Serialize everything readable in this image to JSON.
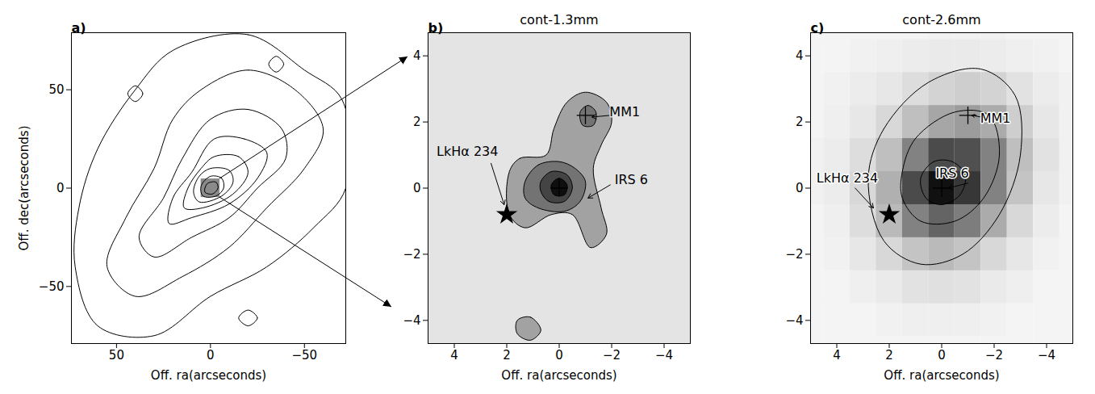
{
  "chart_data": [
    {
      "type": "contour",
      "panel_label": "a)",
      "x_label": "Off. ra(arcseconds)",
      "y_label": "Off. dec(arcseconds)",
      "xlim": [
        74,
        -72
      ],
      "ylim": [
        -79,
        79
      ],
      "xticks": [
        50,
        0,
        -50
      ],
      "yticks": [
        -50,
        0,
        50
      ],
      "contours": [
        {
          "points": [
            [
              20,
              70
            ],
            [
              -20,
              78
            ],
            [
              -50,
              60
            ],
            [
              -70,
              45
            ],
            [
              -72,
              0
            ],
            [
              -55,
              -20
            ],
            [
              -30,
              -40
            ],
            [
              0,
              -55
            ],
            [
              30,
              -75
            ],
            [
              60,
              -70
            ],
            [
              72,
              -40
            ],
            [
              70,
              -10
            ],
            [
              60,
              20
            ],
            [
              40,
              50
            ]
          ]
        },
        {
          "points": [
            [
              5,
              50
            ],
            [
              -20,
              60
            ],
            [
              -45,
              50
            ],
            [
              -60,
              30
            ],
            [
              -50,
              10
            ],
            [
              -30,
              -10
            ],
            [
              -10,
              -30
            ],
            [
              15,
              -45
            ],
            [
              40,
              -55
            ],
            [
              55,
              -40
            ],
            [
              45,
              -15
            ],
            [
              30,
              10
            ],
            [
              20,
              35
            ]
          ]
        },
        {
          "points": [
            [
              0,
              35
            ],
            [
              -20,
              40
            ],
            [
              -38,
              30
            ],
            [
              -40,
              15
            ],
            [
              -25,
              0
            ],
            [
              -10,
              -15
            ],
            [
              10,
              -25
            ],
            [
              30,
              -35
            ],
            [
              38,
              -25
            ],
            [
              25,
              -5
            ],
            [
              15,
              15
            ]
          ]
        },
        {
          "points": [
            [
              -2,
              25
            ],
            [
              -18,
              25
            ],
            [
              -30,
              18
            ],
            [
              -25,
              5
            ],
            [
              -10,
              -8
            ],
            [
              10,
              -15
            ],
            [
              22,
              -18
            ],
            [
              20,
              -5
            ],
            [
              10,
              8
            ]
          ]
        },
        {
          "points": [
            [
              -2,
              16
            ],
            [
              -15,
              16
            ],
            [
              -20,
              8
            ],
            [
              -12,
              -3
            ],
            [
              4,
              -10
            ],
            [
              14,
              -10
            ],
            [
              12,
              0
            ],
            [
              5,
              10
            ]
          ]
        },
        {
          "points": [
            [
              0,
              10
            ],
            [
              -10,
              9
            ],
            [
              -12,
              3
            ],
            [
              -6,
              -4
            ],
            [
              6,
              -7
            ],
            [
              9,
              -2
            ],
            [
              6,
              6
            ]
          ]
        },
        {
          "points": [
            [
              0,
              6
            ],
            [
              -6,
              5
            ],
            [
              -7,
              0
            ],
            [
              -3,
              -4
            ],
            [
              4,
              -4
            ],
            [
              5,
              1
            ]
          ]
        },
        {
          "points": [
            [
              0,
              3
            ],
            [
              -3,
              3
            ],
            [
              -4,
              0
            ],
            [
              -1,
              -3
            ],
            [
              3,
              -2
            ],
            [
              2,
              2
            ]
          ]
        },
        {
          "points": [
            [
              40,
              52
            ],
            [
              36,
              48
            ],
            [
              40,
              44
            ],
            [
              44,
              48
            ]
          ]
        },
        {
          "points": [
            [
              -20,
              -62
            ],
            [
              -25,
              -66
            ],
            [
              -20,
              -70
            ],
            [
              -15,
              -66
            ]
          ]
        },
        {
          "points": [
            [
              -35,
              67
            ],
            [
              -39,
              63
            ],
            [
              -35,
              59
            ],
            [
              -31,
              63
            ]
          ]
        }
      ]
    },
    {
      "type": "filled_contour",
      "title": "cont-1.3mm",
      "panel_label": "b)",
      "x_label": "Off. ra(arcseconds)",
      "xlim": [
        5,
        -5
      ],
      "ylim": [
        -4.7,
        4.7
      ],
      "xticks": [
        4,
        2,
        0,
        -2,
        -4
      ],
      "yticks": [
        -4,
        -2,
        0,
        2,
        4
      ],
      "contours": [
        {
          "level": 1,
          "points": [
            [
              1.9,
              0.5
            ],
            [
              1.5,
              0.9
            ],
            [
              0.5,
              1.0
            ],
            [
              0.2,
              1.8
            ],
            [
              -0.3,
              2.6
            ],
            [
              -1.0,
              2.9
            ],
            [
              -1.8,
              2.6
            ],
            [
              -2.0,
              2.0
            ],
            [
              -1.6,
              1.3
            ],
            [
              -1.3,
              0.6
            ],
            [
              -1.6,
              -0.6
            ],
            [
              -1.8,
              -1.4
            ],
            [
              -1.2,
              -1.8
            ],
            [
              -0.5,
              -0.8
            ],
            [
              0.3,
              -0.8
            ],
            [
              1.3,
              -1.2
            ],
            [
              1.9,
              -0.8
            ]
          ]
        },
        {
          "level": 1,
          "points": [
            [
              1.6,
              -4.0
            ],
            [
              1.1,
              -3.9
            ],
            [
              0.7,
              -4.3
            ],
            [
              1.1,
              -4.6
            ],
            [
              1.6,
              -4.4
            ]
          ]
        },
        {
          "level": 2,
          "points": [
            [
              -0.8,
              2.3
            ],
            [
              -1.1,
              2.5
            ],
            [
              -1.4,
              2.3
            ],
            [
              -1.3,
              1.9
            ],
            [
              -0.9,
              1.9
            ]
          ]
        },
        {
          "level": 2,
          "points": [
            [
              1.3,
              0.2
            ],
            [
              0.8,
              0.7
            ],
            [
              0,
              0.8
            ],
            [
              -0.6,
              0.6
            ],
            [
              -1.0,
              0.2
            ],
            [
              -0.8,
              -0.4
            ],
            [
              -0.2,
              -0.7
            ],
            [
              0.8,
              -0.6
            ],
            [
              1.3,
              -0.3
            ]
          ]
        },
        {
          "level": 3,
          "points": [
            [
              0.7,
              0.2
            ],
            [
              0.3,
              0.5
            ],
            [
              -0.3,
              0.4
            ],
            [
              -0.5,
              0
            ],
            [
              -0.2,
              -0.4
            ],
            [
              0.4,
              -0.4
            ],
            [
              0.7,
              -0.1
            ]
          ]
        },
        {
          "level": 4,
          "points": [
            [
              0.3,
              0.1
            ],
            [
              0,
              0.3
            ],
            [
              -0.3,
              0.1
            ],
            [
              -0.2,
              -0.2
            ],
            [
              0.2,
              -0.2
            ]
          ]
        }
      ],
      "sources": [
        {
          "name": "MM1",
          "x": -1.0,
          "y": 2.2,
          "marker": "plus",
          "label_x": -2.5,
          "label_y": 2.3,
          "arrow": [
            -1.95,
            2.2,
            -1.25,
            2.15
          ]
        },
        {
          "name": "IRS 6",
          "x": 0,
          "y": 0,
          "marker": "plus",
          "label_x": -2.75,
          "label_y": 0.25,
          "arrow": [
            -1.95,
            0.1,
            -1.1,
            -0.3
          ]
        },
        {
          "name": "LkHα 234",
          "x": 2.0,
          "y": -0.8,
          "marker": "star",
          "label_x": 3.5,
          "label_y": 1.1,
          "arrow": [
            2.6,
            0.75,
            2.1,
            -0.5
          ]
        }
      ]
    },
    {
      "type": "image_contour",
      "title": "cont-2.6mm",
      "panel_label": "c)",
      "x_label": "Off. ra(arcseconds)",
      "xlim": [
        5,
        -5
      ],
      "ylim": [
        -4.7,
        4.7
      ],
      "xticks": [
        4,
        2,
        0,
        -2,
        -4
      ],
      "yticks": [
        -4,
        -2,
        0,
        2,
        4
      ],
      "cells": {
        "cell_size": 1,
        "x": [
          5,
          4,
          3,
          2,
          1,
          0,
          -1,
          -2,
          -3,
          -4,
          -5
        ],
        "y": [
          5,
          4,
          3,
          2,
          1,
          0,
          -1,
          -2,
          -3,
          -4,
          -5
        ],
        "values": [
          [
            0.05,
            0.05,
            0.05,
            0.05,
            0.05,
            0.06,
            0.06,
            0.06,
            0.05,
            0.05,
            0.05
          ],
          [
            0.05,
            0.05,
            0.06,
            0.07,
            0.08,
            0.09,
            0.09,
            0.08,
            0.07,
            0.06,
            0.05
          ],
          [
            0.05,
            0.06,
            0.08,
            0.1,
            0.14,
            0.18,
            0.2,
            0.18,
            0.12,
            0.08,
            0.06
          ],
          [
            0.05,
            0.07,
            0.1,
            0.16,
            0.26,
            0.36,
            0.4,
            0.34,
            0.2,
            0.1,
            0.06
          ],
          [
            0.06,
            0.08,
            0.14,
            0.26,
            0.5,
            0.72,
            0.7,
            0.5,
            0.26,
            0.12,
            0.06
          ],
          [
            0.06,
            0.08,
            0.16,
            0.32,
            0.72,
            0.95,
            0.8,
            0.5,
            0.24,
            0.1,
            0.06
          ],
          [
            0.05,
            0.07,
            0.14,
            0.28,
            0.5,
            0.62,
            0.52,
            0.34,
            0.16,
            0.08,
            0.05
          ],
          [
            0.05,
            0.06,
            0.1,
            0.16,
            0.24,
            0.28,
            0.24,
            0.16,
            0.1,
            0.06,
            0.05
          ],
          [
            0.05,
            0.05,
            0.07,
            0.09,
            0.12,
            0.13,
            0.12,
            0.09,
            0.07,
            0.05,
            0.05
          ],
          [
            0.05,
            0.05,
            0.05,
            0.06,
            0.07,
            0.07,
            0.07,
            0.06,
            0.05,
            0.05,
            0.05
          ],
          [
            0.05,
            0.05,
            0.05,
            0.05,
            0.05,
            0.05,
            0.05,
            0.05,
            0.05,
            0.05,
            0.05
          ]
        ]
      },
      "contours": [
        {
          "points": [
            [
              2.8,
              0.3
            ],
            [
              2.2,
              1.8
            ],
            [
              0.5,
              3.2
            ],
            [
              -1.5,
              3.6
            ],
            [
              -2.8,
              2.8
            ],
            [
              -3.0,
              1.0
            ],
            [
              -2.2,
              -0.8
            ],
            [
              -0.8,
              -2.0
            ],
            [
              0.8,
              -2.3
            ],
            [
              2.2,
              -1.6
            ]
          ]
        },
        {
          "points": [
            [
              1.5,
              0.5
            ],
            [
              1.0,
              1.5
            ],
            [
              -0.5,
              2.3
            ],
            [
              -1.8,
              2.2
            ],
            [
              -2.2,
              1.0
            ],
            [
              -1.6,
              -0.3
            ],
            [
              -0.5,
              -1.0
            ],
            [
              0.8,
              -1.0
            ],
            [
              1.5,
              -0.3
            ]
          ]
        },
        {
          "points": [
            [
              0.8,
              0.3
            ],
            [
              0.3,
              0.8
            ],
            [
              -0.4,
              0.8
            ],
            [
              -0.9,
              0.4
            ],
            [
              -0.7,
              -0.2
            ],
            [
              0,
              -0.5
            ],
            [
              0.6,
              -0.3
            ]
          ]
        }
      ],
      "sources": [
        {
          "name": "MM1",
          "x": -1.0,
          "y": 2.2,
          "marker": "plus",
          "label_x": -2.05,
          "label_y": 2.1,
          "arrow": [
            -1.5,
            2.15,
            -1.15,
            2.2
          ]
        },
        {
          "name": "IRS 6",
          "x": 0,
          "y": 0,
          "marker": "plus",
          "label_x": -0.4,
          "label_y": 0.45,
          "arrow": [
            -1.0,
            0.15,
            -0.25,
            0.0
          ]
        },
        {
          "name": "LkHα 234",
          "x": 2.0,
          "y": -0.8,
          "marker": "star",
          "label_x": 3.6,
          "label_y": 0.3,
          "arrow": [
            3.3,
            0.0,
            2.6,
            -0.6
          ]
        }
      ]
    }
  ]
}
